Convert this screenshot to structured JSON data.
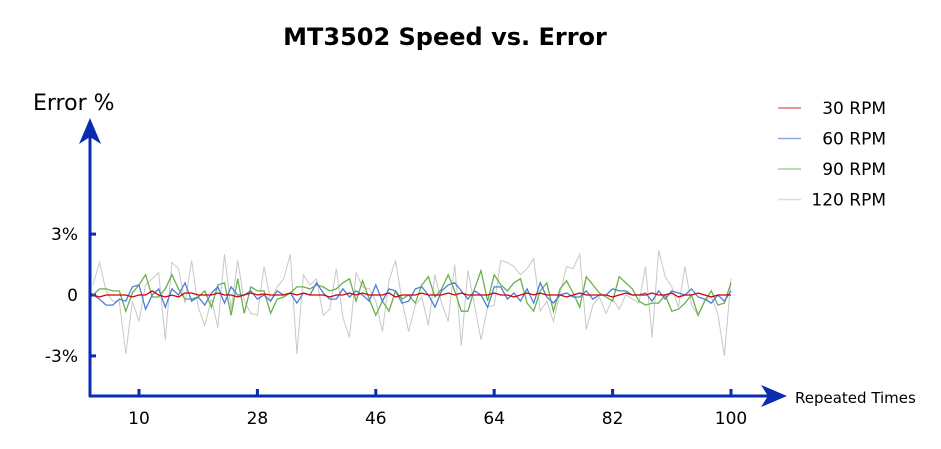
{
  "chart_data": {
    "type": "line",
    "title": "MT3502 Speed vs. Error",
    "ylabel": "Error %",
    "xlabel": "Repeated Times",
    "ylim": [
      -5,
      8
    ],
    "y_ticks": [
      {
        "value": 3,
        "label": "3%"
      },
      {
        "value": 0,
        "label": "0"
      },
      {
        "value": -3,
        "label": "-3%"
      }
    ],
    "x_ticks": [
      10,
      28,
      46,
      64,
      82,
      100
    ],
    "grid": false,
    "legend_position": "top-right",
    "axis_color": "#0a2db0",
    "x": [
      3,
      4,
      5,
      6,
      7,
      8,
      9,
      10,
      11,
      12,
      13,
      14,
      15,
      16,
      17,
      18,
      19,
      20,
      21,
      22,
      23,
      24,
      25,
      26,
      27,
      28,
      29,
      30,
      31,
      32,
      33,
      34,
      35,
      36,
      37,
      38,
      39,
      40,
      41,
      42,
      43,
      44,
      45,
      46,
      47,
      48,
      49,
      50,
      51,
      52,
      53,
      54,
      55,
      56,
      57,
      58,
      59,
      60,
      61,
      62,
      63,
      64,
      65,
      66,
      67,
      68,
      69,
      70,
      71,
      72,
      73,
      74,
      75,
      76,
      77,
      78,
      79,
      80,
      81,
      82,
      83,
      84,
      85,
      86,
      87,
      88,
      89,
      90,
      91,
      92,
      93,
      94,
      95,
      96,
      97,
      98,
      99,
      100
    ],
    "series": [
      {
        "name": "120 RPM",
        "color": "#c8c8c8",
        "legend_color": "#dcdcdc",
        "values": [
          0.5,
          1.6,
          0.2,
          -0.3,
          -0.3,
          -2.9,
          -0.3,
          -1.3,
          0.5,
          0.8,
          1.1,
          -2.2,
          1.6,
          1.3,
          -0.4,
          1.7,
          -0.6,
          -1.5,
          -0.2,
          -1.6,
          2.0,
          -0.7,
          1.7,
          -0.3,
          -0.9,
          -1.0,
          1.4,
          -0.3,
          0.4,
          0.8,
          2.0,
          -2.9,
          1.0,
          0.5,
          0.8,
          -1.0,
          -0.7,
          1.3,
          -1.1,
          -2.1,
          1.1,
          0.4,
          0.3,
          -0.3,
          -1.8,
          0.7,
          1.7,
          -0.3,
          -1.8,
          -0.5,
          -0.1,
          -1.5,
          1.0,
          -0.4,
          -1.3,
          1.5,
          -2.5,
          1.2,
          -0.5,
          -2.2,
          -0.6,
          -0.5,
          1.7,
          1.6,
          1.4,
          1.0,
          1.3,
          1.8,
          -0.8,
          -0.3,
          -1.3,
          0.1,
          1.4,
          1.3,
          2.0,
          -1.7,
          -0.5,
          -0.1,
          -0.9,
          -0.2,
          -0.7,
          0.0,
          -0.2,
          -0.4,
          1.4,
          -2.1,
          2.2,
          0.9,
          0.4,
          -0.6,
          1.4,
          -0.5,
          -1.0,
          -0.3,
          -0.1,
          -0.9,
          -3.0,
          0.8
        ]
      },
      {
        "name": "90 RPM",
        "color": "#6ab04c",
        "legend_color": "#a8d08d",
        "values": [
          0,
          0.3,
          0.3,
          0.2,
          0.2,
          -0.8,
          0.1,
          0.5,
          1.0,
          -0.1,
          -0.1,
          0.3,
          1.0,
          0.3,
          -0.2,
          -0.2,
          -0.1,
          0.2,
          -0.6,
          0.5,
          0.6,
          -1.0,
          0.8,
          -0.9,
          0.4,
          0.2,
          0.2,
          -0.9,
          -0.2,
          -0.1,
          0.1,
          0.4,
          0.4,
          0.3,
          0.5,
          0.4,
          0.2,
          0.3,
          0.6,
          0.8,
          -0.3,
          0.7,
          -0.2,
          -1.0,
          -0.3,
          -0.8,
          0.2,
          -0.2,
          0,
          -0.4,
          0.5,
          0.9,
          -0.1,
          0.3,
          1.0,
          0.2,
          -0.8,
          -0.8,
          0.3,
          1.2,
          -0.3,
          1.0,
          0.5,
          0.2,
          0.6,
          0.8,
          -0.4,
          -0.8,
          0.2,
          0.6,
          -0.8,
          0.3,
          0.7,
          0.1,
          -0.6,
          0.9,
          0.5,
          0.1,
          -0.1,
          -0.3,
          0.9,
          0.6,
          0.3,
          -0.3,
          -0.5,
          -0.4,
          -0.4,
          0,
          -0.8,
          -0.7,
          -0.4,
          0,
          -1.0,
          -0.3,
          0.2,
          -0.5,
          -0.4,
          0.6
        ]
      },
      {
        "name": "60 RPM",
        "color": "#4a7fd6",
        "legend_color": "#8eaadc",
        "values": [
          0,
          -0.2,
          -0.5,
          -0.5,
          -0.2,
          -0.3,
          0.4,
          0.5,
          -0.7,
          0.0,
          0.3,
          -0.6,
          0.3,
          0.0,
          0.6,
          -0.3,
          -0.1,
          -0.5,
          0.1,
          0.4,
          -0.4,
          0.4,
          0.0,
          0.0,
          0.2,
          -0.2,
          0.0,
          -0.3,
          0.2,
          0.0,
          0.1,
          -0.4,
          0.1,
          0.0,
          0.6,
          0.1,
          -0.2,
          -0.2,
          0.3,
          -0.1,
          0.2,
          0.0,
          -0.3,
          0.5,
          -0.3,
          0.3,
          0.2,
          -0.4,
          -0.3,
          0.3,
          0.4,
          0.0,
          -0.6,
          0.2,
          0.5,
          0.6,
          0.2,
          -0.2,
          0.2,
          0.0,
          -0.6,
          0.4,
          0.4,
          -0.2,
          0.1,
          -0.3,
          0.3,
          -0.4,
          0.6,
          -0.1,
          -0.4,
          0.0,
          0.1,
          -0.1,
          -0.1,
          0.2,
          -0.2,
          0.0,
          0.0,
          0.3,
          0.2,
          0.2,
          0.0,
          0.0,
          0.1,
          -0.3,
          0.2,
          -0.2,
          0.2,
          0.1,
          0.0,
          0.3,
          -0.1,
          -0.2,
          -0.4,
          0.0,
          -0.3,
          0.2
        ]
      },
      {
        "name": "30 RPM",
        "color": "#d40000",
        "legend_color": "#e07070",
        "values": [
          0,
          -0.1,
          0,
          0,
          0,
          0,
          -0.1,
          0,
          0,
          0.2,
          0,
          -0.1,
          0,
          -0.1,
          0.1,
          0.1,
          0,
          0,
          0,
          0.1,
          0,
          0,
          -0.1,
          0,
          0.1,
          0,
          0.05,
          0,
          0,
          0,
          0.1,
          0,
          0.1,
          0,
          0,
          0,
          -0.1,
          0,
          0,
          0.1,
          0,
          0.1,
          0,
          0,
          0,
          0.1,
          -0.1,
          0,
          0,
          0,
          0.1,
          0,
          0,
          0,
          0.1,
          0,
          0.1,
          0,
          0,
          0,
          0,
          0.1,
          0,
          0,
          -0.1,
          0,
          0.1,
          0,
          0.1,
          0,
          0,
          0,
          -0.1,
          0,
          0.1,
          0,
          0,
          0,
          0,
          -0.1,
          0,
          0.1,
          0,
          0,
          0,
          0.1,
          0,
          0,
          0.1,
          -0.1,
          0,
          0,
          0.1,
          0,
          -0.1,
          0,
          0,
          0
        ]
      }
    ],
    "legend": [
      "30 RPM",
      "60 RPM",
      "90 RPM",
      "120 RPM"
    ]
  }
}
